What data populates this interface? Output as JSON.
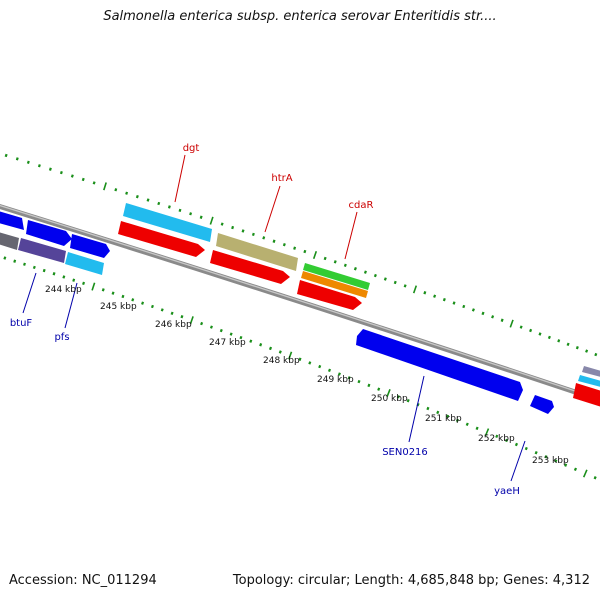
{
  "header": {
    "title": "Salmonella enterica subsp. enterica serovar Enteritidis str...."
  },
  "footer": {
    "accession": "Accession: NC_011294",
    "summary": "Topology: circular; Length: 4,685,848 bp; Genes: 4,312"
  },
  "scale_labels": [
    "244 kbp",
    "245 kbp",
    "246 kbp",
    "247 kbp",
    "248 kbp",
    "249 kbp",
    "250 kbp",
    "251 kbp",
    "252 kbp",
    "253 kbp"
  ],
  "gene_labels": {
    "dgt": "dgt",
    "htrA": "htrA",
    "cdaR": "cdaR",
    "btuF": "btuF",
    "pfs": "pfs",
    "sen0216": "SEN0216",
    "yaeH": "yaeH"
  },
  "colors": {
    "backbone": "#8a8a8a",
    "tick_green": "#1a8f1a",
    "blue": "#0000ee",
    "red": "#ee0000",
    "cyan": "#22bbee",
    "khaki": "#b8b070",
    "green": "#33cc33",
    "orange": "#ee8800",
    "label_red": "#cc0000",
    "label_blue": "#0000aa"
  }
}
